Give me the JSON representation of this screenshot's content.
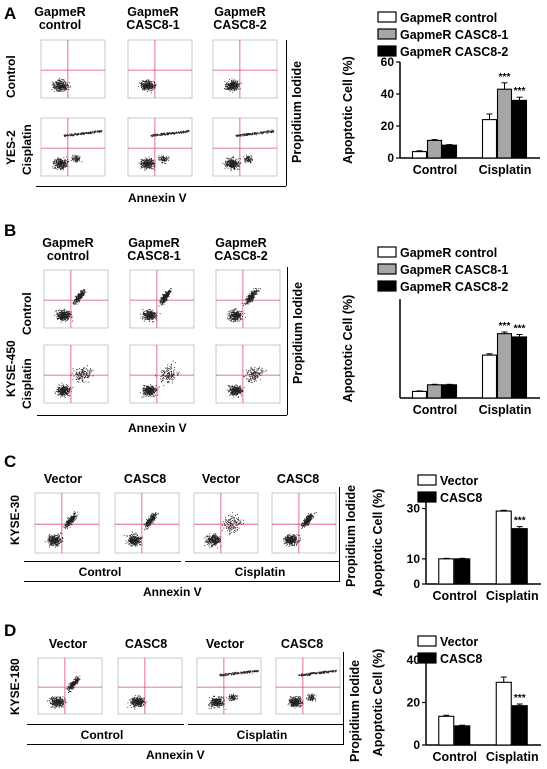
{
  "panels": [
    {
      "letter": "A",
      "cell_line": "YES-2",
      "columns": [
        "GapmeR\ncontrol",
        "GapmeR\nCASC8-1",
        "GapmeR\nCASC8-2"
      ],
      "rows": [
        "Control",
        "Cisplatin"
      ],
      "flow_xlabel": "Annexin V",
      "flow_ylabel": "Propidium Iodide"
    },
    {
      "letter": "B",
      "cell_line": "KYSE-450",
      "columns": [
        "GapmeR\ncontrol",
        "GapmeR\nCASC8-1",
        "GapmeR\nCASC8-2"
      ],
      "rows": [
        "Control",
        "Cisplatin"
      ],
      "flow_xlabel": "Annexin V",
      "flow_ylabel": "Propidium Iodide"
    },
    {
      "letter": "C",
      "cell_line": "KYSE-30",
      "columns": [
        "Vector",
        "CASC8",
        "Vector",
        "CASC8"
      ],
      "groups": [
        "Control",
        "Cisplatin"
      ],
      "flow_xlabel": "Annexin V",
      "flow_ylabel": "Propidium Iodide"
    },
    {
      "letter": "D",
      "cell_line": "KYSE-180",
      "columns": [
        "Vector",
        "CASC8",
        "Vector",
        "CASC8"
      ],
      "groups": [
        "Control",
        "Cisplatin"
      ],
      "flow_xlabel": "Annexin V",
      "flow_ylabel": "Propidium Iodide"
    }
  ],
  "colors": {
    "white_bar": "#ffffff",
    "gray_bar": "#a6a6a6",
    "black_bar": "#000000",
    "gate": "#d9487a",
    "dots": "#222222"
  },
  "chart_data": [
    {
      "type": "bar",
      "panel": "A",
      "ylabel": "Apoptotic Cell (%)",
      "categories": [
        "Control",
        "Cisplatin"
      ],
      "ylim": [
        0,
        60
      ],
      "yticks": [
        0,
        20,
        40,
        60
      ],
      "series": [
        {
          "name": "GapmeR control",
          "values": [
            4,
            24
          ],
          "errors": [
            0.5,
            3.5
          ],
          "color": "#ffffff"
        },
        {
          "name": "GapmeR CASC8-1",
          "values": [
            11,
            43
          ],
          "errors": [
            0.5,
            4
          ],
          "color": "#a6a6a6"
        },
        {
          "name": "GapmeR CASC8-2",
          "values": [
            8,
            36
          ],
          "errors": [
            0.4,
            2
          ],
          "color": "#000000"
        }
      ],
      "annotations": [
        "",
        "***",
        "***"
      ]
    },
    {
      "type": "bar",
      "panel": "B",
      "ylabel": "Apoptotic Cell (%)",
      "categories": [
        "Control",
        "Cisplatin"
      ],
      "ylim": [
        0,
        60
      ],
      "yticks": [],
      "series": [
        {
          "name": "GapmeR control",
          "values": [
            4,
            26
          ],
          "errors": [
            0.3,
            0.8
          ],
          "color": "#ffffff"
        },
        {
          "name": "GapmeR CASC8-1",
          "values": [
            8,
            39
          ],
          "errors": [
            0.3,
            1
          ],
          "color": "#a6a6a6"
        },
        {
          "name": "GapmeR CASC8-2",
          "values": [
            8,
            37
          ],
          "errors": [
            0.3,
            1.5
          ],
          "color": "#000000"
        }
      ],
      "annotations": [
        "",
        "***",
        "***"
      ]
    },
    {
      "type": "bar",
      "panel": "C",
      "ylabel": "Apoptotic Cell (%)",
      "categories": [
        "Control",
        "Cisplatin"
      ],
      "ylim": [
        0,
        33
      ],
      "yticks": [
        0,
        10,
        30
      ],
      "series": [
        {
          "name": "Vector",
          "values": [
            10,
            29
          ],
          "errors": [
            0.2,
            0.3
          ],
          "color": "#ffffff"
        },
        {
          "name": "CASC8",
          "values": [
            10,
            22
          ],
          "errors": [
            0.2,
            0.8
          ],
          "color": "#000000"
        }
      ],
      "annotations": [
        "",
        "***"
      ]
    },
    {
      "type": "bar",
      "panel": "D",
      "ylabel": "Apoptotic Cell (%)",
      "categories": [
        "Control",
        "Cisplatin"
      ],
      "ylim": [
        0,
        40
      ],
      "yticks": [
        0,
        20,
        40
      ],
      "series": [
        {
          "name": "Vector",
          "values": [
            13.5,
            29.5
          ],
          "errors": [
            0.5,
            2.5
          ],
          "color": "#ffffff"
        },
        {
          "name": "CASC8",
          "values": [
            9,
            18.5
          ],
          "errors": [
            0.3,
            0.8
          ],
          "color": "#000000"
        }
      ],
      "annotations": [
        "",
        "***"
      ]
    }
  ]
}
